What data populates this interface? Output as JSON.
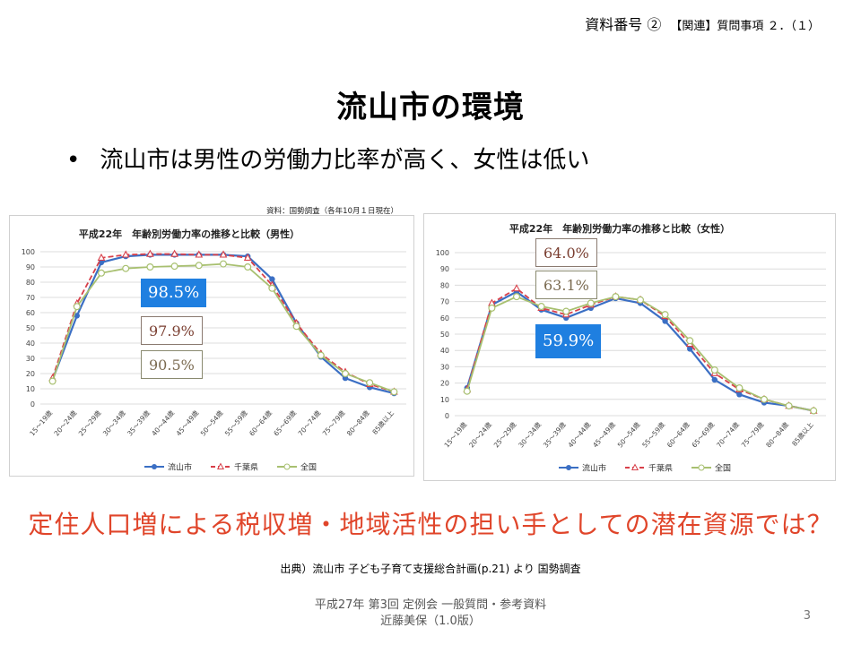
{
  "doc_ref": {
    "main": "資料番号 ②",
    "sub": "【関連】質問事項 ２．（１）"
  },
  "slide_title": "流山市の環境",
  "bullet": "流山市は男性の労働力比率が高く、女性は低い",
  "headline": "定住人口増による税収増・地域活性の担い手としての潜在資源では？",
  "source_note": "出典）流山市 子ども子育て支援総合計画(p.21) より 国勢調査",
  "footer": {
    "line1": "平成27年 第3回 定例会 一般質問・参考資料",
    "line2": "近藤美保（1.0版）"
  },
  "page_number": "3",
  "colors": {
    "nagareyama": "#3b6fc4",
    "chiba": "#d8404a",
    "national": "#a8c070",
    "headline": "#e0452a",
    "callout_blue": "#1f7fe0"
  },
  "chart_data": [
    {
      "type": "line",
      "id": "male",
      "title": "平成22年　年齢別労働力率の推移と比較（男性）",
      "source_label": "資料：国勢調査（各年10月１日現在）",
      "categories": [
        "15～19歳",
        "20～24歳",
        "25～29歳",
        "30～34歳",
        "35～39歳",
        "40～44歳",
        "45～49歳",
        "50～54歳",
        "55～59歳",
        "60～64歳",
        "65～69歳",
        "70～74歳",
        "75～79歳",
        "80～84歳",
        "85歳以上"
      ],
      "ylim": [
        0,
        100
      ],
      "yticks": [
        0,
        10,
        20,
        30,
        40,
        50,
        60,
        70,
        80,
        90,
        100
      ],
      "legend_position": "bottom",
      "series": [
        {
          "name": "流山市",
          "values": [
            16,
            58,
            93,
            97,
            98,
            98,
            98,
            98,
            97,
            82,
            53,
            31,
            17,
            11,
            7
          ]
        },
        {
          "name": "千葉県",
          "values": [
            17,
            66,
            96,
            98,
            98.5,
            98.5,
            98,
            98,
            96,
            78,
            53,
            33,
            21,
            13,
            8
          ]
        },
        {
          "name": "全国",
          "values": [
            15,
            64,
            86,
            89,
            90,
            90.5,
            91,
            92,
            90,
            76,
            51,
            32,
            20,
            14,
            8
          ]
        }
      ],
      "callouts": [
        "98.5%",
        "97.9%",
        "90.5%"
      ]
    },
    {
      "type": "line",
      "id": "female",
      "title": "平成22年　年齢別労働力率の推移と比較（女性）",
      "categories": [
        "15～19歳",
        "20～24歳",
        "25～29歳",
        "30～34歳",
        "35～39歳",
        "40～44歳",
        "45～49歳",
        "50～54歳",
        "55～59歳",
        "60～64歳",
        "65～69歳",
        "70～74歳",
        "75～79歳",
        "80～84歳",
        "85歳以上"
      ],
      "ylim": [
        0,
        100
      ],
      "yticks": [
        0,
        10,
        20,
        30,
        40,
        50,
        60,
        70,
        80,
        90,
        100
      ],
      "legend_position": "bottom",
      "series": [
        {
          "name": "流山市",
          "values": [
            17,
            68,
            76,
            65,
            60,
            66,
            72,
            69,
            58,
            41,
            22,
            13,
            8,
            6,
            3
          ]
        },
        {
          "name": "千葉県",
          "values": [
            16,
            69,
            78,
            66,
            62,
            68,
            73,
            71,
            61,
            44,
            26,
            16,
            10,
            6,
            3
          ]
        },
        {
          "name": "全国",
          "values": [
            15,
            66,
            73,
            67,
            64,
            69,
            73,
            71,
            62,
            46,
            28,
            17,
            10,
            6,
            3
          ]
        }
      ],
      "callouts": [
        "64.0%",
        "63.1%",
        "59.9%"
      ]
    }
  ]
}
